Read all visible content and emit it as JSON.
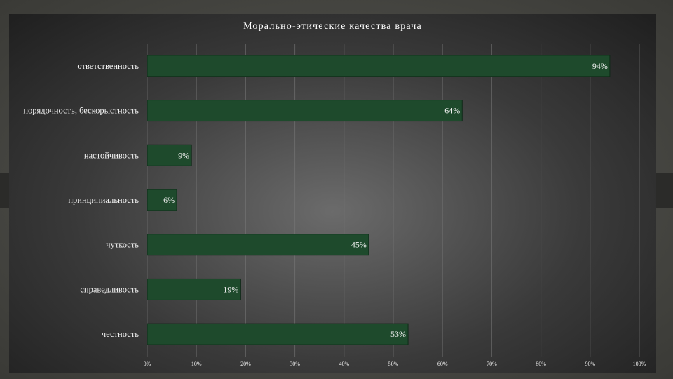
{
  "chart_data": {
    "type": "bar",
    "orientation": "horizontal",
    "title": "Морально-этические качества врача",
    "categories": [
      "ответственность",
      "порядочность, бескорыстность",
      "настойчивость",
      "принципиальность",
      "чуткость",
      "справедливость",
      "честность"
    ],
    "values": [
      94,
      64,
      9,
      6,
      45,
      19,
      53
    ],
    "value_labels": [
      "94%",
      "64%",
      "9%",
      "6%",
      "45%",
      "19%",
      "53%"
    ],
    "xlim": [
      0,
      100
    ],
    "x_ticks": [
      "0%",
      "10%",
      "20%",
      "30%",
      "40%",
      "50%",
      "60%",
      "70%",
      "80%",
      "90%",
      "100%"
    ],
    "grid": "vertical",
    "legend": "none",
    "colors": {
      "bar_fill": "#1e4a2c",
      "bar_edge": "#0f2a18",
      "gridline": "#7a7a7a",
      "text": "#f2f2f2"
    }
  }
}
